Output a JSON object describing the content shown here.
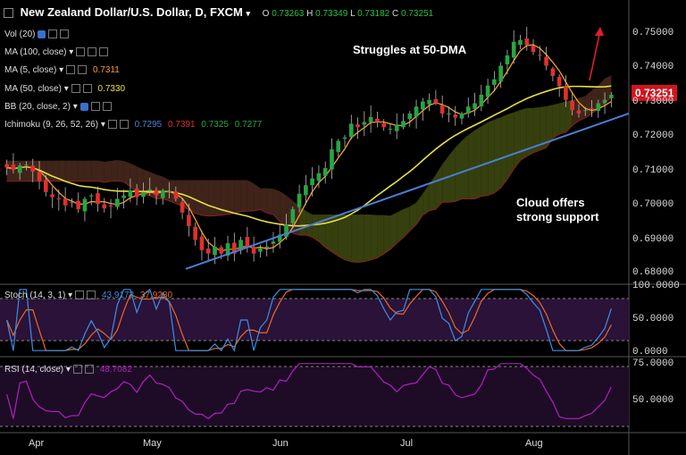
{
  "header": {
    "title": "New Zealand Dollar/U.S. Dollar, D, FXCM",
    "open_label": "O",
    "open": "0.73263",
    "high_label": "H",
    "high": "0.73349",
    "low_label": "L",
    "low": "0.73182",
    "close_label": "C",
    "close": "0.73251"
  },
  "indicators": {
    "vol": "Vol (20)",
    "ma100": "MA (100, close)",
    "ma5": "MA (5, close)",
    "ma5_value": "0.7311",
    "ma50": "MA (50, close)",
    "ma50_value": "0.7330",
    "bb": "BB (20, close, 2)",
    "ichimoku": "Ichimoku (9, 26, 52, 26)",
    "ichi_v1": "0.7295",
    "ichi_v2": "0.7391",
    "ichi_v3": "0.7325",
    "ichi_v4": "0.7277",
    "stoch": "Stoch (14, 3, 1)",
    "stoch_k": "43.9172",
    "stoch_d": "37.9280",
    "rsi": "RSI (14, close)",
    "rsi_value": "48.7082"
  },
  "annotations": {
    "struggles": "Struggles at 50-DMA",
    "cloud_line1": "Cloud offers",
    "cloud_line2": "strong support"
  },
  "price_tag": "0.73251",
  "price_axis": [
    "0.75000",
    "0.74000",
    "0.73000",
    "0.72000",
    "0.71000",
    "0.70000",
    "0.69000",
    "0.68000"
  ],
  "stoch_axis": [
    "100.0000",
    "50.0000",
    "0.0000"
  ],
  "rsi_axis": [
    "75.0000",
    "50.0000"
  ],
  "x_labels": [
    "Apr",
    "May",
    "Jun",
    "Jul",
    "Aug"
  ],
  "colors": {
    "candle_up": "#26a641",
    "candle_down": "#e0302e",
    "ma5": "#f0a030",
    "ma50": "#e8e040",
    "trendline": "#4a7fd4",
    "cloud_bear": "#4a2a1e",
    "cloud_bull": "#3f4a10",
    "stoch_k": "#3d8ee6",
    "stoch_d": "#e86a2a",
    "rsi": "#b020c0",
    "price_tag": "#d0141c"
  },
  "chart_data": {
    "type": "candlestick",
    "title": "New Zealand Dollar/U.S. Dollar, D, FXCM",
    "ylim": [
      0.677,
      0.755
    ],
    "xlabel": "",
    "ylabel": "",
    "x_tick_labels": [
      "Apr",
      "May",
      "Jun",
      "Jul",
      "Aug"
    ],
    "close": [
      0.7112,
      0.7105,
      0.7118,
      0.712,
      0.71,
      0.7072,
      0.704,
      0.7025,
      0.702,
      0.7001,
      0.7008,
      0.699,
      0.702,
      0.703,
      0.7005,
      0.6992,
      0.6998,
      0.702,
      0.703,
      0.7045,
      0.7025,
      0.704,
      0.7048,
      0.703,
      0.7045,
      0.7042,
      0.702,
      0.698,
      0.694,
      0.69,
      0.687,
      0.686,
      0.688,
      0.686,
      0.689,
      0.686,
      0.69,
      0.688,
      0.686,
      0.6875,
      0.688,
      0.6895,
      0.6915,
      0.6945,
      0.699,
      0.7035,
      0.706,
      0.708,
      0.7095,
      0.711,
      0.7165,
      0.719,
      0.72,
      0.724,
      0.723,
      0.7245,
      0.726,
      0.7245,
      0.723,
      0.7225,
      0.7238,
      0.7248,
      0.727,
      0.729,
      0.7305,
      0.731,
      0.73,
      0.727,
      0.727,
      0.7258,
      0.727,
      0.729,
      0.73,
      0.7325,
      0.7352,
      0.737,
      0.741,
      0.744,
      0.748,
      0.7485,
      0.747,
      0.745,
      0.744,
      0.741,
      0.738,
      0.735,
      0.731,
      0.728,
      0.727,
      0.728,
      0.7285,
      0.73,
      0.731,
      0.7325
    ],
    "series": [
      {
        "name": "MA (5, close)",
        "last": 0.7311
      },
      {
        "name": "MA (50, close)",
        "last": 0.733
      },
      {
        "name": "Stoch (14, 3, 1)",
        "k_last": 43.9172,
        "d_last": 37.928
      },
      {
        "name": "RSI (14, close)",
        "last": 48.7082
      }
    ],
    "trendline": {
      "from": 0.6815,
      "to": 0.727
    }
  }
}
